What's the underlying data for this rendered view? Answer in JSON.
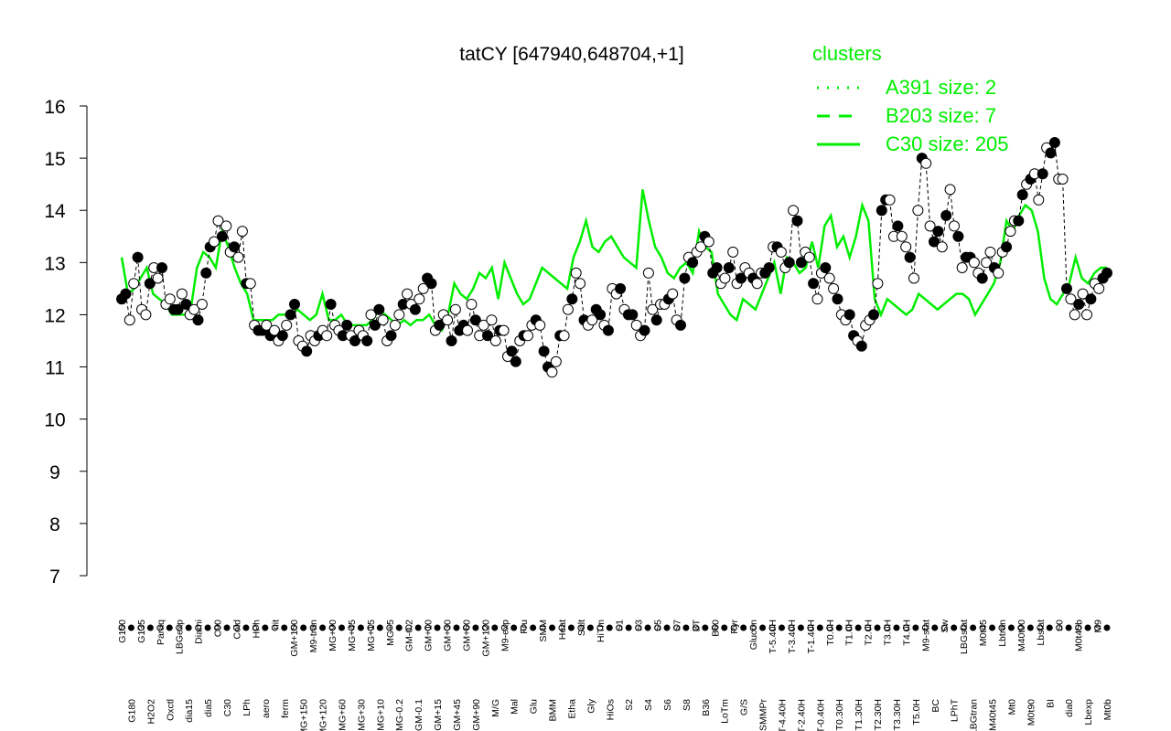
{
  "chart_data": {
    "type": "line",
    "title": "tatCY [647940,648704,+1]",
    "xlabel": "",
    "ylabel": "",
    "ylim": [
      7,
      16
    ],
    "yticks": [
      7,
      8,
      9,
      10,
      11,
      12,
      13,
      14,
      15,
      16
    ],
    "grid": false,
    "legend_position": "top-right",
    "legend": {
      "title": "clusters",
      "entries": [
        {
          "label": "A391 size: 2",
          "style": "dotted"
        },
        {
          "label": "B203 size: 7",
          "style": "dashed"
        },
        {
          "label": "C30 size: 205",
          "style": "solid"
        }
      ]
    },
    "x_tick_labels": [
      "G150",
      "G180",
      "G135",
      "H2O2",
      "Paraq",
      "Oxctl",
      "LBGexp",
      "dia15",
      "Diami",
      "dia5",
      "C90",
      "C30",
      "Cold",
      "LPh",
      "HPh",
      "aero",
      "nit",
      "ferm",
      "GM+150",
      "MG+150",
      "M9-tran",
      "MG+120",
      "MG+90",
      "MG+60",
      "MG+45",
      "MG+30",
      "MG+15",
      "MG+10",
      "MG+5",
      "MG-0.2",
      "GM-0.2",
      "GM-0.1",
      "GM+10",
      "GM+15",
      "GM+30",
      "GM+45",
      "GM+60",
      "GM+90",
      "GM+120",
      "M/G",
      "M9-exp",
      "Mal",
      "Fru",
      "Glu",
      "SMM",
      "BMM",
      "Heat",
      "Etha",
      "Salt",
      "Gly",
      "HiTm",
      "HiOs",
      "S1",
      "S2",
      "S3",
      "S4",
      "S5",
      "S6",
      "S7",
      "S8",
      "BT",
      "B36",
      "B60",
      "LoTm",
      "Pyr",
      "G/S",
      "Glucon",
      "SMMPr",
      "T-5.40H",
      "T-4.40H",
      "T-3.40H",
      "T-2.40H",
      "T-1.40H",
      "T-0.40H",
      "T0.0H",
      "T0.30H",
      "T1.0H",
      "T1.30H",
      "T2.0H",
      "T2.30H",
      "T3.0H",
      "T3.30H",
      "T4.0H",
      "T5.0H",
      "M9-stat",
      "BC",
      "Sw",
      "LPhT",
      "LBGstat",
      "LBGtran",
      "M0t45",
      "M40t45",
      "Lbtran",
      "Mt0",
      "M40t90",
      "M0t90",
      "Lbstat",
      "BI",
      "S0",
      "dia0",
      "M0t45b",
      "Lbexp",
      "M9",
      "Mt0b"
    ],
    "series": [
      {
        "values": [
          12.3,
          12.4,
          11.9,
          12.6,
          13.1,
          12.1,
          12.0,
          12.6,
          12.9,
          12.7,
          12.9,
          12.2,
          12.3,
          12.1,
          12.1,
          12.4,
          12.2,
          12.0,
          12.1,
          11.9,
          12.2,
          12.8,
          13.3,
          13.4,
          13.8,
          13.5,
          13.7,
          13.2,
          13.3,
          13.1,
          13.6,
          12.6,
          12.6,
          11.8,
          11.7,
          11.7,
          11.8,
          11.6,
          11.7,
          11.5,
          11.6,
          11.8,
          12.0,
          12.2,
          11.5,
          11.4,
          11.3,
          11.6,
          11.5,
          11.6,
          11.7,
          11.6,
          12.2,
          11.8,
          11.7,
          11.6,
          11.8,
          11.6,
          11.5,
          11.7,
          11.6,
          11.5,
          12.0,
          11.8,
          12.1,
          11.9,
          11.5,
          11.6,
          11.8,
          12.0,
          12.2,
          12.4,
          12.2,
          12.1,
          12.3,
          12.5,
          12.7,
          12.6,
          11.7,
          11.8,
          12.0,
          11.9,
          11.5,
          12.1,
          11.7,
          11.8,
          11.7,
          12.2,
          11.9,
          11.6,
          11.8,
          11.6,
          11.9,
          11.5,
          11.7,
          11.7,
          11.2,
          11.3,
          11.1,
          11.5,
          11.6,
          11.6,
          11.8,
          11.9,
          11.8,
          11.3,
          11.0,
          10.9,
          11.1,
          11.6,
          11.6,
          12.1,
          12.3,
          12.8,
          12.6,
          11.9,
          11.8,
          11.9,
          12.1,
          12.0,
          11.8,
          11.7,
          12.5,
          12.4,
          12.5,
          12.1,
          12.0,
          12.0,
          11.8,
          11.6,
          11.7,
          12.8,
          12.1,
          11.9,
          12.2,
          12.2,
          12.3,
          12.4,
          11.9,
          11.8,
          12.7,
          13.1,
          13.0,
          13.2,
          13.3,
          13.5,
          13.4,
          12.8,
          12.9,
          12.6,
          12.7,
          12.9,
          13.2,
          12.6,
          12.7,
          12.9,
          12.8,
          12.7,
          12.6,
          12.8,
          12.8,
          12.9,
          13.3,
          13.3,
          13.2,
          12.9,
          13.0,
          14.0,
          13.8,
          13.0,
          13.2,
          13.1,
          12.6,
          12.3,
          12.8,
          12.9,
          12.7,
          12.5,
          12.3,
          12.0,
          11.9,
          12.0,
          11.6,
          11.5,
          11.4,
          11.8,
          11.9,
          12.0,
          12.6,
          14.0,
          14.2,
          14.2,
          13.5,
          13.7,
          13.5,
          13.3,
          13.1,
          12.7,
          14.0,
          15.0,
          14.9,
          13.7,
          13.4,
          13.6,
          13.3,
          13.9,
          14.4,
          13.7,
          13.5,
          12.9,
          13.1,
          13.1,
          13.0,
          12.8,
          12.7,
          13.0,
          13.2,
          12.9,
          12.8,
          13.2,
          13.3,
          13.6,
          13.8,
          13.8,
          14.3,
          14.5,
          14.6,
          14.7,
          14.2,
          14.7,
          15.2,
          15.1,
          15.3,
          14.6,
          14.6,
          12.5,
          12.3,
          12.0,
          12.2,
          12.4,
          12.0,
          12.3,
          12.6,
          12.5,
          12.7,
          12.8
        ]
      }
    ],
    "envelope_values": [
      13.1,
      12.4,
      12.5,
      12.7,
      12.9,
      12.4,
      12.3,
      12.2,
      12.0,
      12.0,
      12.0,
      12.1,
      12.9,
      13.2,
      13.1,
      12.9,
      13.6,
      13.3,
      12.9,
      12.6,
      12.4,
      11.9,
      11.9,
      11.9,
      11.9,
      12.0,
      12.0,
      12.0,
      12.1,
      12.0,
      11.9,
      12.0,
      12.4,
      11.9,
      11.9,
      12.0,
      11.8,
      11.8,
      11.8,
      11.8,
      11.9,
      12.1,
      12.0,
      11.9,
      11.8,
      11.9,
      11.8,
      11.9,
      11.9,
      12.0,
      11.8,
      11.7,
      12.0,
      12.6,
      12.4,
      12.3,
      12.5,
      12.8,
      12.7,
      12.9,
      12.3,
      13.0,
      12.7,
      12.4,
      12.2,
      12.3,
      12.6,
      12.9,
      12.8,
      12.7,
      12.6,
      12.5,
      13.1,
      13.4,
      13.8,
      13.3,
      13.2,
      13.4,
      13.5,
      13.3,
      13.1,
      13.0,
      12.9,
      14.4,
      13.8,
      13.3,
      13.1,
      12.8,
      12.7,
      12.9,
      13.0,
      12.8,
      13.6,
      13.3,
      13.2,
      12.4,
      12.2,
      12.0,
      11.9,
      12.3,
      12.2,
      12.1,
      12.4,
      12.7,
      13.0,
      12.4,
      13.1,
      13.0,
      12.8,
      12.9,
      13.4,
      12.9,
      13.7,
      13.9,
      13.3,
      13.5,
      13.1,
      13.5,
      14.1,
      13.8,
      12.3,
      12.0,
      12.3,
      12.2,
      12.1,
      12.0,
      12.1,
      12.4,
      12.3,
      12.2,
      12.1,
      12.2,
      12.3,
      12.4,
      12.4,
      12.3,
      12.0,
      12.2,
      12.4,
      12.6,
      13.0,
      13.8,
      13.6,
      13.9,
      14.1,
      14.0,
      13.6,
      12.7,
      12.3,
      12.2,
      12.4,
      12.6,
      13.1,
      12.7,
      12.6,
      12.8,
      12.9,
      12.9
    ]
  }
}
